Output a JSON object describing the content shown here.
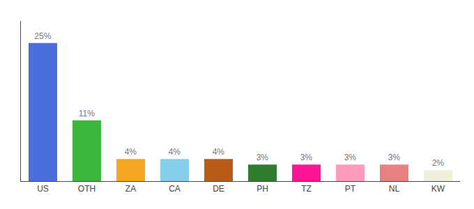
{
  "chart_data": {
    "type": "bar",
    "categories": [
      "US",
      "OTH",
      "ZA",
      "CA",
      "DE",
      "PH",
      "TZ",
      "PT",
      "NL",
      "KW"
    ],
    "values": [
      25,
      11,
      4,
      4,
      4,
      3,
      3,
      3,
      3,
      2
    ],
    "value_labels": [
      "25%",
      "11%",
      "4%",
      "4%",
      "4%",
      "3%",
      "3%",
      "3%",
      "3%",
      "2%"
    ],
    "colors": [
      "#4A6FDB",
      "#3CB83C",
      "#F5A623",
      "#87CEEB",
      "#B85C1A",
      "#2E7D2E",
      "#FF1493",
      "#FF9ABF",
      "#E88080",
      "#F0EFDC"
    ],
    "ylim": [
      0,
      29
    ],
    "data_labels": true,
    "tick_labels": "x",
    "grid": false
  }
}
